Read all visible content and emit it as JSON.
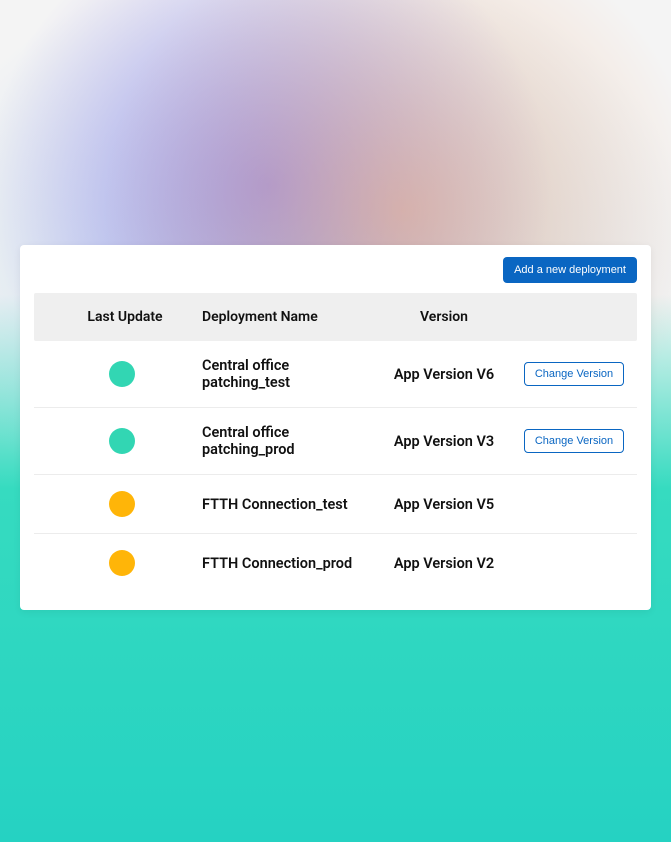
{
  "background": {
    "gradient_colors": [
      "#f4f4f4",
      "#36dbc0",
      "#25d2c2"
    ],
    "blob_purple": "#826ee6",
    "blob_blue": "#a0c8eb",
    "blob_peach": "#f2aa78"
  },
  "toolbar": {
    "add_deployment_label": "Add a new deployment"
  },
  "table": {
    "columns": {
      "last_update": "Last Update",
      "deployment_name": "Deployment Name",
      "version": "Version"
    },
    "status_colors": {
      "teal": "#32d6b3",
      "amber": "#ffb508"
    },
    "change_version_label": "Change Version",
    "rows": [
      {
        "status_color": "#32d6b3",
        "name": "Central office patching_test",
        "version": "App Version V6",
        "show_change": true
      },
      {
        "status_color": "#32d6b3",
        "name": "Central office patching_prod",
        "version": "App Version V3",
        "show_change": true
      },
      {
        "status_color": "#ffb508",
        "name": "FTTH Connection_test",
        "version": "App Version V5",
        "show_change": false
      },
      {
        "status_color": "#ffb508",
        "name": "FTTH Connection_prod",
        "version": "App Version V2",
        "show_change": false
      }
    ]
  },
  "styles": {
    "card_bg": "#ffffff",
    "header_bg": "#efefef",
    "row_divider": "#ececec",
    "primary_button_bg": "#0a66c2",
    "primary_button_fg": "#ffffff",
    "outline_button_border": "#0a66c2",
    "outline_button_fg": "#0a66c2",
    "text_color": "#111111",
    "header_fontsize": 14,
    "cell_fontsize": 14.5,
    "button_fontsize": 11,
    "dot_diameter": 26
  }
}
